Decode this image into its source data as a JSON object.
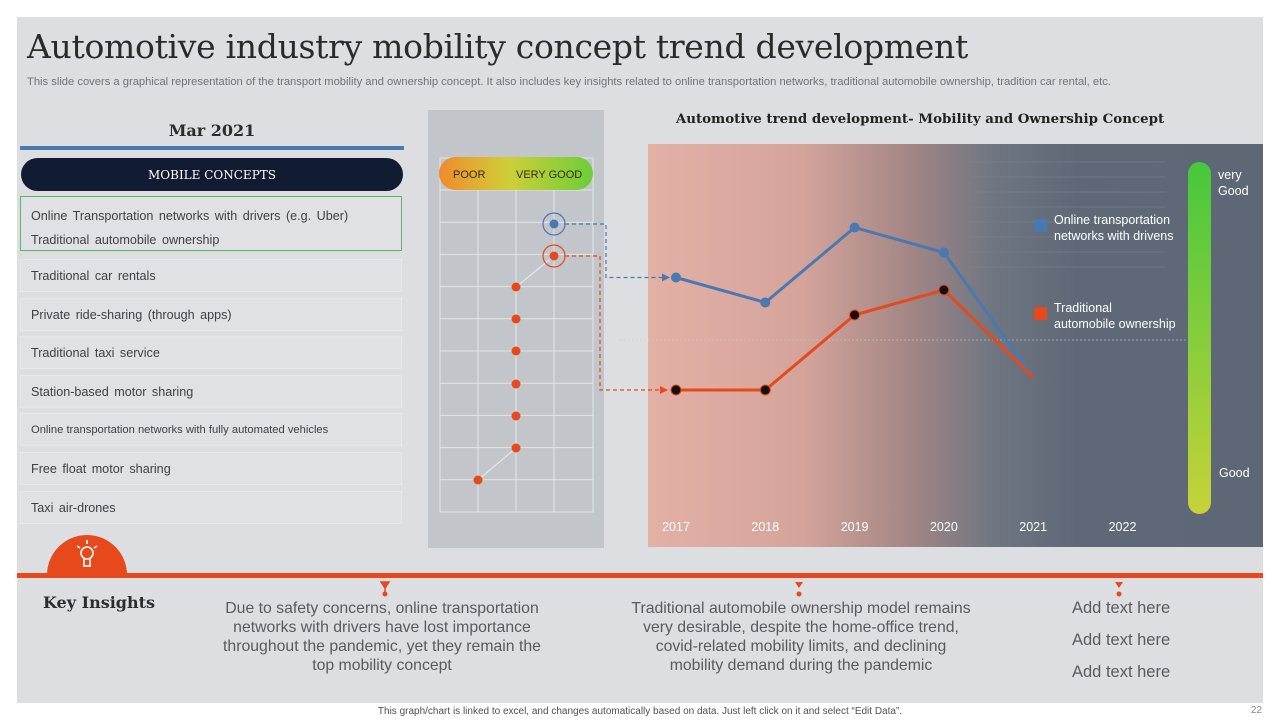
{
  "title": "Automotive industry mobility concept trend development",
  "subtitle": "This slide covers a graphical representation of the transport mobility and ownership concept. It also includes key insights related to online transportation networks, traditional automobile ownership, tradition car rental, etc.",
  "date_header": "Mar 2021",
  "concepts_header": "MOBILE CONCEPTS",
  "concepts": [
    "Online Transportation  networks with drivers  (e.g. Uber)",
    "Traditional  automobile ownership",
    "Traditional  car rentals",
    "Private ride-sharing  (through apps)",
    "Traditional  taxi service",
    "Station-based motor sharing",
    "Online transportation networks with fully automated vehicles",
    "Free float motor sharing",
    "Taxi air-drones"
  ],
  "scale": {
    "poor_label": "POOR",
    "very_good_label": "VERY GOOD",
    "ratings": [
      3,
      3,
      2,
      2,
      2,
      2,
      2,
      2,
      1
    ]
  },
  "chart_data": {
    "type": "line",
    "title": "Automotive trend development- Mobility and Ownership Concept",
    "categories": [
      "2017",
      "2018",
      "2019",
      "2020",
      "2021",
      "2022"
    ],
    "series": [
      {
        "name": "Online transportation networks with drivens",
        "color": "#4a78b0",
        "values": [
          4.25,
          3.75,
          5.25,
          4.75,
          2.25,
          null
        ]
      },
      {
        "name": "Traditional automobile ownership",
        "color": "#e5491c",
        "values": [
          2.0,
          2.0,
          3.5,
          4.0,
          2.25,
          null
        ]
      }
    ],
    "ylim": [
      0,
      6
    ],
    "scale_top_label": "very Good",
    "scale_bottom_label": "Good"
  },
  "colors": {
    "accent": "#e5491c",
    "blue": "#4a78b0",
    "navy": "#111c32",
    "green": "#5cb85c"
  },
  "key_insights": {
    "heading": "Key Insights",
    "insight1": "Due to safety concerns, online transportation networks with drivers have lost importance throughout  the pandemic, yet they remain the top mobility concept",
    "insight2": "Traditional automobile ownership model remains very desirable, despite the home-office trend,  covid-related mobility limits, and declining mobility demand during the pandemic",
    "add_text": [
      "Add text here",
      "Add text here",
      "Add text here"
    ]
  },
  "footer": "This graph/chart is linked to excel, and changes automatically based on data. Just left click on it and select “Edit Data”.",
  "page_number": "22"
}
